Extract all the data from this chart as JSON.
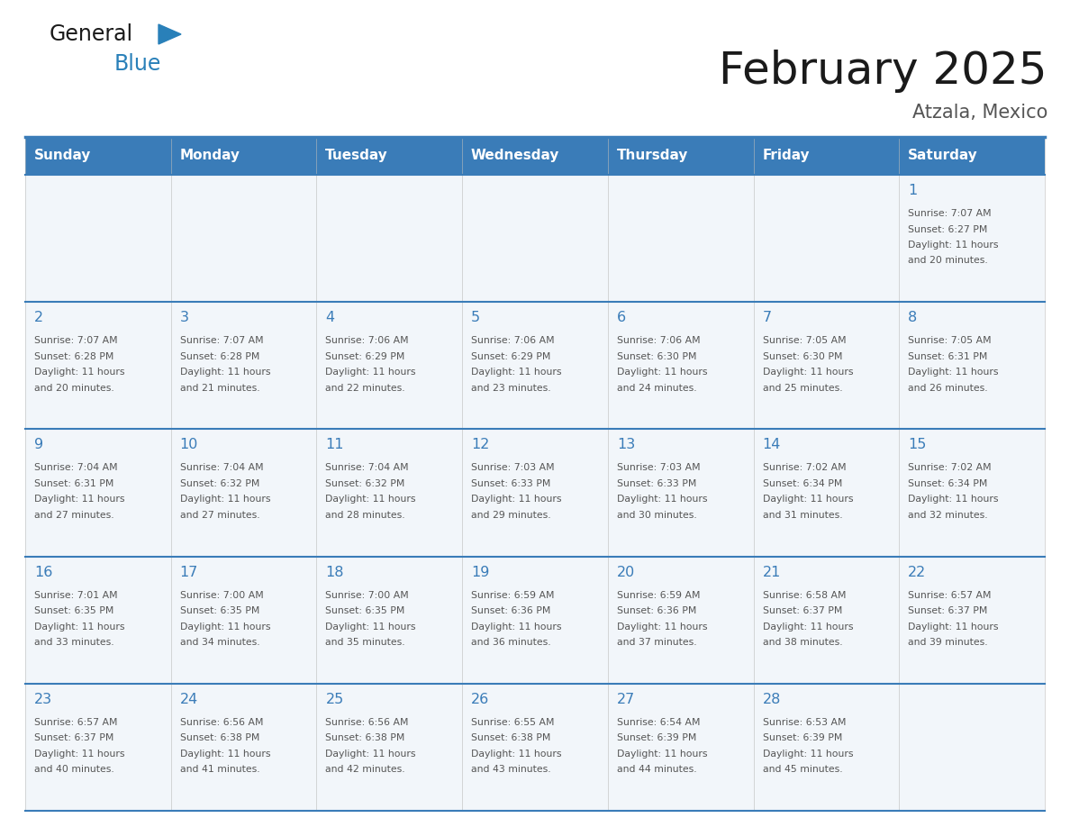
{
  "title": "February 2025",
  "subtitle": "Atzala, Mexico",
  "days_of_week": [
    "Sunday",
    "Monday",
    "Tuesday",
    "Wednesday",
    "Thursday",
    "Friday",
    "Saturday"
  ],
  "header_bg": "#3a7cb8",
  "header_text_color": "#ffffff",
  "cell_bg": "#f2f6fa",
  "cell_border_color": "#3a7cb8",
  "day_number_color": "#3a7cb8",
  "info_text_color": "#555555",
  "title_color": "#1a1a1a",
  "subtitle_color": "#555555",
  "logo_general_color": "#1a1a1a",
  "logo_blue_color": "#2980b9",
  "calendar_data": [
    {
      "day": 1,
      "col": 6,
      "row": 0,
      "sunrise": "7:07 AM",
      "sunset": "6:27 PM",
      "daylight_hours": 11,
      "daylight_minutes": 20
    },
    {
      "day": 2,
      "col": 0,
      "row": 1,
      "sunrise": "7:07 AM",
      "sunset": "6:28 PM",
      "daylight_hours": 11,
      "daylight_minutes": 20
    },
    {
      "day": 3,
      "col": 1,
      "row": 1,
      "sunrise": "7:07 AM",
      "sunset": "6:28 PM",
      "daylight_hours": 11,
      "daylight_minutes": 21
    },
    {
      "day": 4,
      "col": 2,
      "row": 1,
      "sunrise": "7:06 AM",
      "sunset": "6:29 PM",
      "daylight_hours": 11,
      "daylight_minutes": 22
    },
    {
      "day": 5,
      "col": 3,
      "row": 1,
      "sunrise": "7:06 AM",
      "sunset": "6:29 PM",
      "daylight_hours": 11,
      "daylight_minutes": 23
    },
    {
      "day": 6,
      "col": 4,
      "row": 1,
      "sunrise": "7:06 AM",
      "sunset": "6:30 PM",
      "daylight_hours": 11,
      "daylight_minutes": 24
    },
    {
      "day": 7,
      "col": 5,
      "row": 1,
      "sunrise": "7:05 AM",
      "sunset": "6:30 PM",
      "daylight_hours": 11,
      "daylight_minutes": 25
    },
    {
      "day": 8,
      "col": 6,
      "row": 1,
      "sunrise": "7:05 AM",
      "sunset": "6:31 PM",
      "daylight_hours": 11,
      "daylight_minutes": 26
    },
    {
      "day": 9,
      "col": 0,
      "row": 2,
      "sunrise": "7:04 AM",
      "sunset": "6:31 PM",
      "daylight_hours": 11,
      "daylight_minutes": 27
    },
    {
      "day": 10,
      "col": 1,
      "row": 2,
      "sunrise": "7:04 AM",
      "sunset": "6:32 PM",
      "daylight_hours": 11,
      "daylight_minutes": 27
    },
    {
      "day": 11,
      "col": 2,
      "row": 2,
      "sunrise": "7:04 AM",
      "sunset": "6:32 PM",
      "daylight_hours": 11,
      "daylight_minutes": 28
    },
    {
      "day": 12,
      "col": 3,
      "row": 2,
      "sunrise": "7:03 AM",
      "sunset": "6:33 PM",
      "daylight_hours": 11,
      "daylight_minutes": 29
    },
    {
      "day": 13,
      "col": 4,
      "row": 2,
      "sunrise": "7:03 AM",
      "sunset": "6:33 PM",
      "daylight_hours": 11,
      "daylight_minutes": 30
    },
    {
      "day": 14,
      "col": 5,
      "row": 2,
      "sunrise": "7:02 AM",
      "sunset": "6:34 PM",
      "daylight_hours": 11,
      "daylight_minutes": 31
    },
    {
      "day": 15,
      "col": 6,
      "row": 2,
      "sunrise": "7:02 AM",
      "sunset": "6:34 PM",
      "daylight_hours": 11,
      "daylight_minutes": 32
    },
    {
      "day": 16,
      "col": 0,
      "row": 3,
      "sunrise": "7:01 AM",
      "sunset": "6:35 PM",
      "daylight_hours": 11,
      "daylight_minutes": 33
    },
    {
      "day": 17,
      "col": 1,
      "row": 3,
      "sunrise": "7:00 AM",
      "sunset": "6:35 PM",
      "daylight_hours": 11,
      "daylight_minutes": 34
    },
    {
      "day": 18,
      "col": 2,
      "row": 3,
      "sunrise": "7:00 AM",
      "sunset": "6:35 PM",
      "daylight_hours": 11,
      "daylight_minutes": 35
    },
    {
      "day": 19,
      "col": 3,
      "row": 3,
      "sunrise": "6:59 AM",
      "sunset": "6:36 PM",
      "daylight_hours": 11,
      "daylight_minutes": 36
    },
    {
      "day": 20,
      "col": 4,
      "row": 3,
      "sunrise": "6:59 AM",
      "sunset": "6:36 PM",
      "daylight_hours": 11,
      "daylight_minutes": 37
    },
    {
      "day": 21,
      "col": 5,
      "row": 3,
      "sunrise": "6:58 AM",
      "sunset": "6:37 PM",
      "daylight_hours": 11,
      "daylight_minutes": 38
    },
    {
      "day": 22,
      "col": 6,
      "row": 3,
      "sunrise": "6:57 AM",
      "sunset": "6:37 PM",
      "daylight_hours": 11,
      "daylight_minutes": 39
    },
    {
      "day": 23,
      "col": 0,
      "row": 4,
      "sunrise": "6:57 AM",
      "sunset": "6:37 PM",
      "daylight_hours": 11,
      "daylight_minutes": 40
    },
    {
      "day": 24,
      "col": 1,
      "row": 4,
      "sunrise": "6:56 AM",
      "sunset": "6:38 PM",
      "daylight_hours": 11,
      "daylight_minutes": 41
    },
    {
      "day": 25,
      "col": 2,
      "row": 4,
      "sunrise": "6:56 AM",
      "sunset": "6:38 PM",
      "daylight_hours": 11,
      "daylight_minutes": 42
    },
    {
      "day": 26,
      "col": 3,
      "row": 4,
      "sunrise": "6:55 AM",
      "sunset": "6:38 PM",
      "daylight_hours": 11,
      "daylight_minutes": 43
    },
    {
      "day": 27,
      "col": 4,
      "row": 4,
      "sunrise": "6:54 AM",
      "sunset": "6:39 PM",
      "daylight_hours": 11,
      "daylight_minutes": 44
    },
    {
      "day": 28,
      "col": 5,
      "row": 4,
      "sunrise": "6:53 AM",
      "sunset": "6:39 PM",
      "daylight_hours": 11,
      "daylight_minutes": 45
    }
  ]
}
